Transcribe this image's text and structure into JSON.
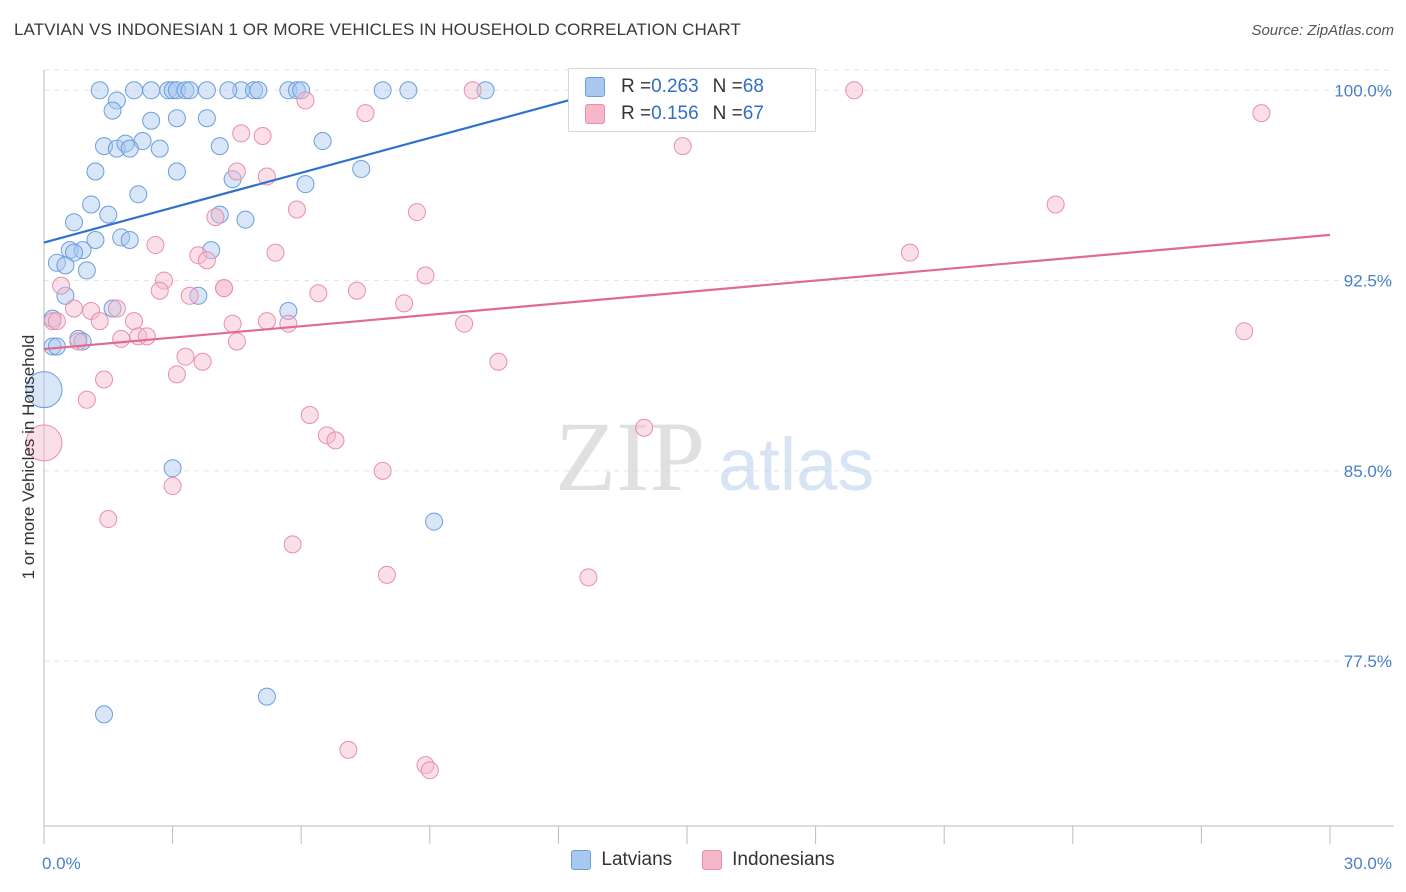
{
  "header": {
    "title": "LATVIAN VS INDONESIAN 1 OR MORE VEHICLES IN HOUSEHOLD CORRELATION CHART",
    "source": "Source: ZipAtlas.com"
  },
  "stats": {
    "rows": [
      {
        "r_label": "R = ",
        "r_value": "0.263",
        "n_label": "N = ",
        "n_value": "68",
        "color": "#a9c8f0"
      },
      {
        "r_label": "R = ",
        "r_value": "0.156",
        "n_label": "N = ",
        "n_value": "67",
        "color": "#f6b7cb"
      }
    ]
  },
  "legend": {
    "items": [
      {
        "label": "Latvians",
        "color": "#a9c8f0"
      },
      {
        "label": "Indonesians",
        "color": "#f6b7cb"
      }
    ]
  },
  "watermark": {
    "zip": "ZIP",
    "atlas": "atlas"
  },
  "chart_data": {
    "type": "scatter",
    "title": "LATVIAN VS INDONESIAN 1 OR MORE VEHICLES IN HOUSEHOLD CORRELATION CHART",
    "xlabel": "",
    "ylabel": "1 or more Vehicles in Household",
    "xlim": [
      0,
      30
    ],
    "ylim": [
      71.0,
      100.8
    ],
    "x_tick_labels": [
      {
        "value": 0,
        "label": "0.0%"
      },
      {
        "value": 30,
        "label": "30.0%"
      }
    ],
    "y_tick_labels": [
      {
        "value": 100.0,
        "label": "100.0%"
      },
      {
        "value": 92.5,
        "label": "92.5%"
      },
      {
        "value": 85.0,
        "label": "85.0%"
      },
      {
        "value": 77.5,
        "label": "77.5%"
      }
    ],
    "grid": true,
    "legend_position": "bottom-center",
    "colors": {
      "latvians_fill": "rgba(169,200,240,0.45)",
      "latvians_stroke": "#6a9fdc",
      "latvians_line": "#2f72cc",
      "indonesians_fill": "rgba(246,183,203,0.45)",
      "indonesians_stroke": "#e88fac",
      "indonesians_line": "#e06a92",
      "grid": "#e2e2e2",
      "tick_label": "#4a7fc8"
    },
    "series": [
      {
        "name": "Latvians",
        "trend": {
          "x": [
            0,
            13.1
          ],
          "y": [
            94.0,
            100.0
          ]
        },
        "points": [
          {
            "x": 1.3,
            "y": 100.0
          },
          {
            "x": 2.1,
            "y": 100.0
          },
          {
            "x": 2.5,
            "y": 100.0
          },
          {
            "x": 2.9,
            "y": 100.0
          },
          {
            "x": 3.0,
            "y": 100.0
          },
          {
            "x": 3.1,
            "y": 100.0
          },
          {
            "x": 3.3,
            "y": 100.0
          },
          {
            "x": 3.8,
            "y": 100.0
          },
          {
            "x": 4.6,
            "y": 100.0
          },
          {
            "x": 4.9,
            "y": 100.0
          },
          {
            "x": 5.0,
            "y": 100.0
          },
          {
            "x": 5.7,
            "y": 100.0
          },
          {
            "x": 5.9,
            "y": 100.0
          },
          {
            "x": 7.9,
            "y": 100.0
          },
          {
            "x": 8.5,
            "y": 100.0
          },
          {
            "x": 10.3,
            "y": 100.0
          },
          {
            "x": 12.8,
            "y": 99.9
          },
          {
            "x": 1.7,
            "y": 99.6
          },
          {
            "x": 1.6,
            "y": 99.2
          },
          {
            "x": 2.5,
            "y": 98.8
          },
          {
            "x": 3.1,
            "y": 98.9
          },
          {
            "x": 3.8,
            "y": 98.9
          },
          {
            "x": 2.3,
            "y": 98.0
          },
          {
            "x": 1.4,
            "y": 97.8
          },
          {
            "x": 1.7,
            "y": 97.7
          },
          {
            "x": 1.9,
            "y": 97.9
          },
          {
            "x": 2.7,
            "y": 97.7
          },
          {
            "x": 4.1,
            "y": 97.8
          },
          {
            "x": 6.5,
            "y": 98.0
          },
          {
            "x": 1.2,
            "y": 96.8
          },
          {
            "x": 3.1,
            "y": 96.8
          },
          {
            "x": 4.4,
            "y": 96.5
          },
          {
            "x": 7.4,
            "y": 96.9
          },
          {
            "x": 6.1,
            "y": 96.3
          },
          {
            "x": 2.2,
            "y": 95.9
          },
          {
            "x": 1.1,
            "y": 95.5
          },
          {
            "x": 1.5,
            "y": 95.1
          },
          {
            "x": 4.1,
            "y": 95.1
          },
          {
            "x": 4.7,
            "y": 94.9
          },
          {
            "x": 0.7,
            "y": 94.8
          },
          {
            "x": 1.2,
            "y": 94.1
          },
          {
            "x": 1.8,
            "y": 94.2
          },
          {
            "x": 2.0,
            "y": 94.1
          },
          {
            "x": 0.6,
            "y": 93.7
          },
          {
            "x": 0.9,
            "y": 93.7
          },
          {
            "x": 0.7,
            "y": 93.6
          },
          {
            "x": 3.9,
            "y": 93.7
          },
          {
            "x": 0.3,
            "y": 93.2
          },
          {
            "x": 0.5,
            "y": 93.1
          },
          {
            "x": 1.0,
            "y": 92.9
          },
          {
            "x": 0.5,
            "y": 91.9
          },
          {
            "x": 3.6,
            "y": 91.9
          },
          {
            "x": 1.6,
            "y": 91.4
          },
          {
            "x": 5.7,
            "y": 91.3
          },
          {
            "x": 0.2,
            "y": 91.0
          },
          {
            "x": 0.8,
            "y": 90.2
          },
          {
            "x": 0.9,
            "y": 90.1
          },
          {
            "x": 0.2,
            "y": 89.9
          },
          {
            "x": 0.0,
            "y": 88.2,
            "size": "large"
          },
          {
            "x": 3.0,
            "y": 85.1
          },
          {
            "x": 9.1,
            "y": 83.0
          },
          {
            "x": 5.2,
            "y": 76.1
          },
          {
            "x": 1.4,
            "y": 75.4
          },
          {
            "x": 0.3,
            "y": 89.9
          },
          {
            "x": 2.0,
            "y": 97.7
          },
          {
            "x": 4.3,
            "y": 100.0
          },
          {
            "x": 3.4,
            "y": 100.0
          },
          {
            "x": 6.0,
            "y": 100.0
          }
        ]
      },
      {
        "name": "Indonesians",
        "trend": {
          "x": [
            0,
            30
          ],
          "y": [
            89.8,
            94.3
          ]
        },
        "points": [
          {
            "x": 10.0,
            "y": 100.0
          },
          {
            "x": 18.9,
            "y": 100.0
          },
          {
            "x": 13.1,
            "y": 100.0
          },
          {
            "x": 6.1,
            "y": 99.6
          },
          {
            "x": 7.5,
            "y": 99.1
          },
          {
            "x": 28.4,
            "y": 99.1
          },
          {
            "x": 4.6,
            "y": 98.3
          },
          {
            "x": 5.1,
            "y": 98.2
          },
          {
            "x": 14.9,
            "y": 97.8
          },
          {
            "x": 4.5,
            "y": 96.8
          },
          {
            "x": 5.2,
            "y": 96.6
          },
          {
            "x": 23.6,
            "y": 95.5
          },
          {
            "x": 5.9,
            "y": 95.3
          },
          {
            "x": 8.7,
            "y": 95.2
          },
          {
            "x": 4.0,
            "y": 95.0
          },
          {
            "x": 2.6,
            "y": 93.9
          },
          {
            "x": 3.6,
            "y": 93.5
          },
          {
            "x": 5.4,
            "y": 93.6
          },
          {
            "x": 20.2,
            "y": 93.6
          },
          {
            "x": 3.8,
            "y": 93.3
          },
          {
            "x": 8.9,
            "y": 92.7
          },
          {
            "x": 2.8,
            "y": 92.5
          },
          {
            "x": 0.4,
            "y": 92.3
          },
          {
            "x": 2.7,
            "y": 92.1
          },
          {
            "x": 4.2,
            "y": 92.2
          },
          {
            "x": 7.3,
            "y": 92.1
          },
          {
            "x": 6.4,
            "y": 92.0
          },
          {
            "x": 3.4,
            "y": 91.9
          },
          {
            "x": 8.4,
            "y": 91.6
          },
          {
            "x": 0.7,
            "y": 91.4
          },
          {
            "x": 1.7,
            "y": 91.4
          },
          {
            "x": 1.1,
            "y": 91.3
          },
          {
            "x": 0.2,
            "y": 90.9
          },
          {
            "x": 1.3,
            "y": 90.9
          },
          {
            "x": 2.1,
            "y": 90.9
          },
          {
            "x": 4.4,
            "y": 90.8
          },
          {
            "x": 5.2,
            "y": 90.9
          },
          {
            "x": 5.7,
            "y": 90.8
          },
          {
            "x": 9.8,
            "y": 90.8
          },
          {
            "x": 2.2,
            "y": 90.3
          },
          {
            "x": 2.4,
            "y": 90.3
          },
          {
            "x": 1.8,
            "y": 90.2
          },
          {
            "x": 0.8,
            "y": 90.1
          },
          {
            "x": 4.5,
            "y": 90.1
          },
          {
            "x": 28.0,
            "y": 90.5
          },
          {
            "x": 3.3,
            "y": 89.5
          },
          {
            "x": 3.7,
            "y": 89.3
          },
          {
            "x": 10.6,
            "y": 89.3
          },
          {
            "x": 3.1,
            "y": 88.8
          },
          {
            "x": 1.4,
            "y": 88.6
          },
          {
            "x": 1.0,
            "y": 87.8
          },
          {
            "x": 6.2,
            "y": 87.2
          },
          {
            "x": 14.0,
            "y": 86.7
          },
          {
            "x": 6.6,
            "y": 86.4
          },
          {
            "x": 6.8,
            "y": 86.2
          },
          {
            "x": 0.0,
            "y": 86.1,
            "size": "large"
          },
          {
            "x": 7.9,
            "y": 85.0
          },
          {
            "x": 3.0,
            "y": 84.4
          },
          {
            "x": 1.5,
            "y": 83.1
          },
          {
            "x": 5.8,
            "y": 82.1
          },
          {
            "x": 8.0,
            "y": 80.9
          },
          {
            "x": 12.7,
            "y": 80.8
          },
          {
            "x": 7.1,
            "y": 74.0
          },
          {
            "x": 8.9,
            "y": 73.4
          },
          {
            "x": 9.0,
            "y": 73.2
          },
          {
            "x": 0.3,
            "y": 90.9
          },
          {
            "x": 4.2,
            "y": 92.2
          }
        ]
      }
    ]
  }
}
